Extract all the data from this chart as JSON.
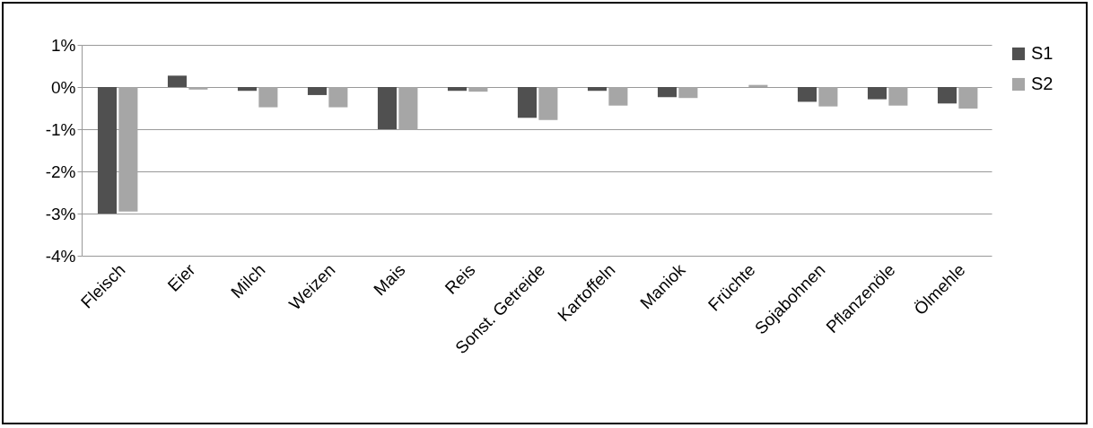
{
  "chart_data": {
    "type": "bar",
    "categories": [
      "Fleisch",
      "Eier",
      "Milch",
      "Weizen",
      "Mais",
      "Reis",
      "Sonst. Getreide",
      "Kartoffeln",
      "Maniok",
      "Früchte",
      "Sojabohnen",
      "Pflanzenöle",
      "Ölmehle"
    ],
    "series": [
      {
        "name": "S1",
        "color": "#505050",
        "values": [
          -3.0,
          0.27,
          -0.09,
          -0.19,
          -1.0,
          -0.09,
          -0.73,
          -0.09,
          -0.24,
          0.0,
          -0.35,
          -0.29,
          -0.39
        ]
      },
      {
        "name": "S2",
        "color": "#a6a6a6",
        "values": [
          -2.95,
          -0.06,
          -0.48,
          -0.48,
          -1.02,
          -0.11,
          -0.78,
          -0.44,
          -0.26,
          0.05,
          -0.46,
          -0.44,
          -0.51
        ]
      }
    ],
    "ylim": [
      -4,
      1
    ],
    "yticks": [
      {
        "value": -4,
        "label": "-4%"
      },
      {
        "value": -3,
        "label": "-3%"
      },
      {
        "value": -2,
        "label": "-2%"
      },
      {
        "value": -1,
        "label": "-1%"
      },
      {
        "value": 0,
        "label": "0%"
      },
      {
        "value": 1,
        "label": "1%"
      }
    ],
    "grid": "y",
    "legend": "right"
  }
}
